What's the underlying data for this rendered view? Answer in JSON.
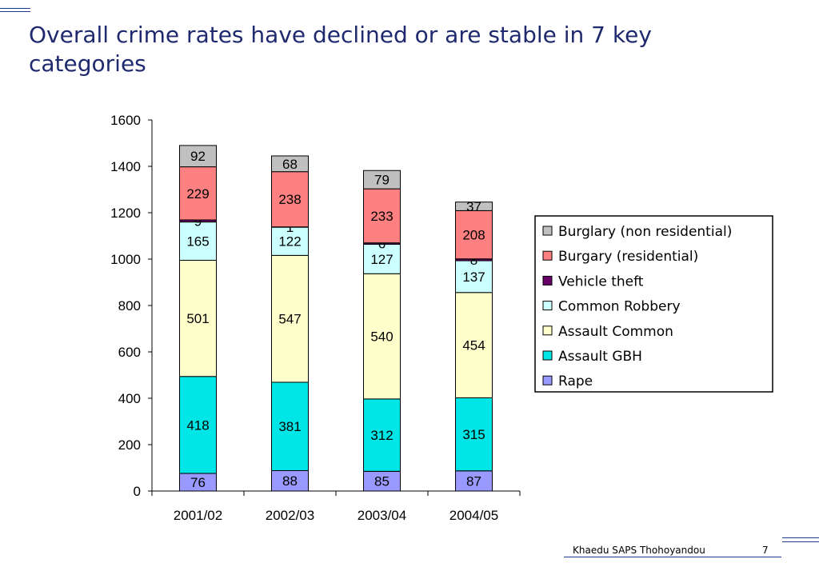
{
  "slide": {
    "title": "Overall crime rates have declined or are stable in 7 key categories",
    "footer": "Khaedu SAPS Thohoyandou",
    "page_number": "7"
  },
  "chart_data": {
    "type": "bar",
    "stacked": true,
    "categories": [
      "2001/02",
      "2002/03",
      "2003/04",
      "2004/05"
    ],
    "ylim": [
      0,
      1600
    ],
    "yticks": [
      0,
      200,
      400,
      600,
      800,
      1000,
      1200,
      1400,
      1600
    ],
    "legend_position": "right",
    "series": [
      {
        "name": "Rape",
        "values": [
          76,
          88,
          85,
          87
        ],
        "color": "#9999ff"
      },
      {
        "name": "Assault GBH",
        "values": [
          418,
          381,
          312,
          315
        ],
        "color": "#00e5e5"
      },
      {
        "name": "Assault Common",
        "values": [
          501,
          547,
          540,
          454
        ],
        "color": "#ffffcc"
      },
      {
        "name": "Common Robbery",
        "values": [
          165,
          122,
          127,
          137
        ],
        "color": "#ccffff"
      },
      {
        "name": "Vehicle theft",
        "values": [
          9,
          1,
          6,
          8
        ],
        "color": "#660066"
      },
      {
        "name": "Burgary (residential)",
        "values": [
          229,
          238,
          233,
          208
        ],
        "color": "#ff8080"
      },
      {
        "name": "Burglary (non residential)",
        "values": [
          92,
          68,
          79,
          37
        ],
        "color": "#c0c0c0"
      }
    ]
  }
}
